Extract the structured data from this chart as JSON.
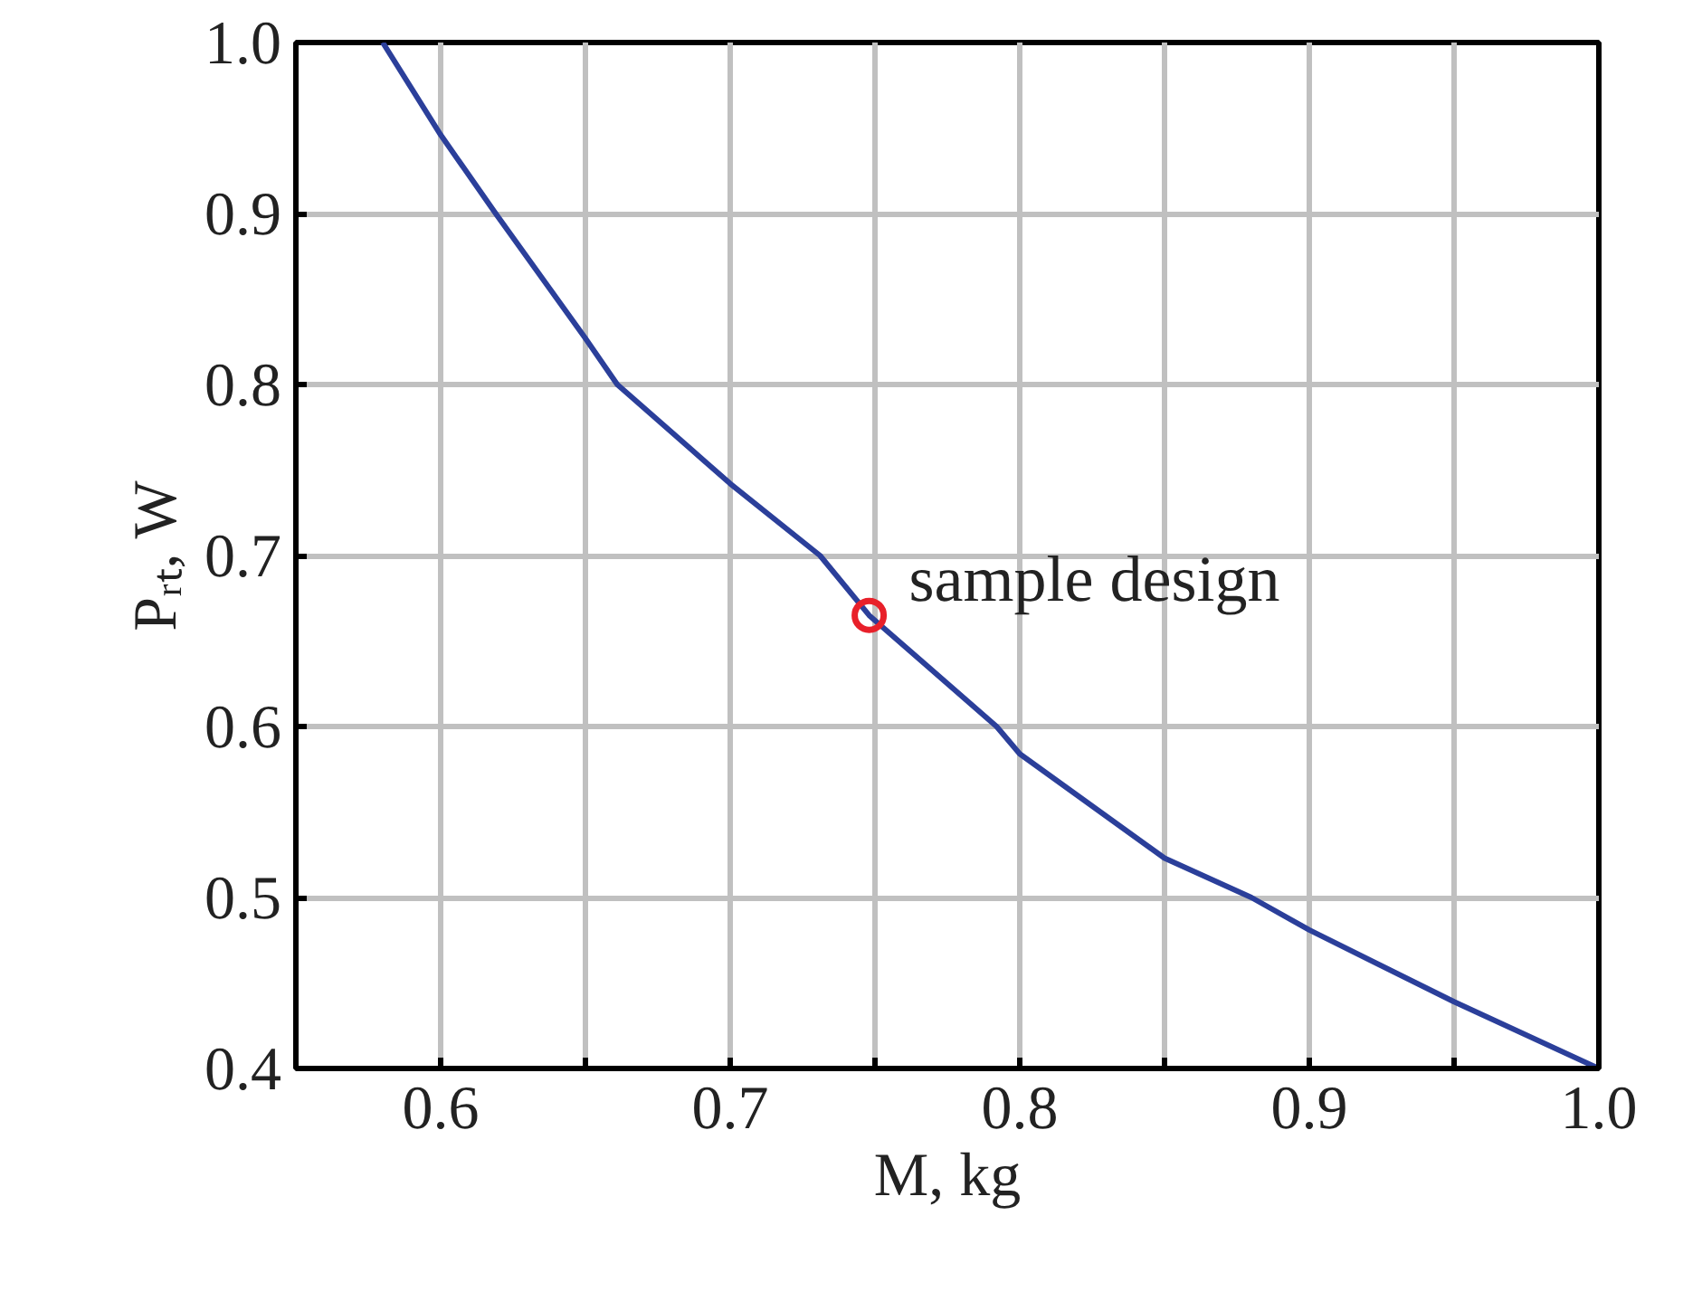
{
  "chart_data": {
    "type": "line",
    "xlabel": "M, kg",
    "ylabel": "Pᵣₜ, W",
    "xlim": [
      0.55,
      1.0
    ],
    "ylim": [
      0.4,
      1.0
    ],
    "xticks": [
      {
        "value": 0.55,
        "label": null
      },
      0.6,
      {
        "value": 0.65,
        "label": null
      },
      0.7,
      {
        "value": 0.75,
        "label": null
      },
      0.8,
      {
        "value": 0.85,
        "label": null
      },
      0.9,
      {
        "value": 0.95,
        "label": null
      },
      {
        "value": 1.0,
        "label": "1.0"
      }
    ],
    "yticks": [
      0.4,
      0.5,
      0.6,
      0.7,
      0.8,
      0.9,
      {
        "value": 1.0,
        "label": "1.0"
      }
    ],
    "grid": true,
    "series": [
      {
        "color": "#2b3f9a",
        "x": [
          0.58,
          0.6,
          0.619,
          0.65,
          0.661,
          0.7,
          0.731,
          0.748,
          0.792,
          0.8,
          0.85,
          0.88,
          0.9,
          0.95,
          1.0
        ],
        "values": [
          1.0,
          0.946,
          0.9,
          0.827,
          0.8,
          0.742,
          0.7,
          0.665,
          0.6,
          0.584,
          0.523,
          0.5,
          0.481,
          0.439,
          0.4
        ]
      },
      {
        "type": "scatter",
        "color": "#e8202a",
        "marker": "circle",
        "x": [
          0.748
        ],
        "values": [
          0.665
        ]
      }
    ],
    "annotations": [
      {
        "text": "sample design",
        "x": 0.748,
        "y": 0.665
      }
    ]
  }
}
